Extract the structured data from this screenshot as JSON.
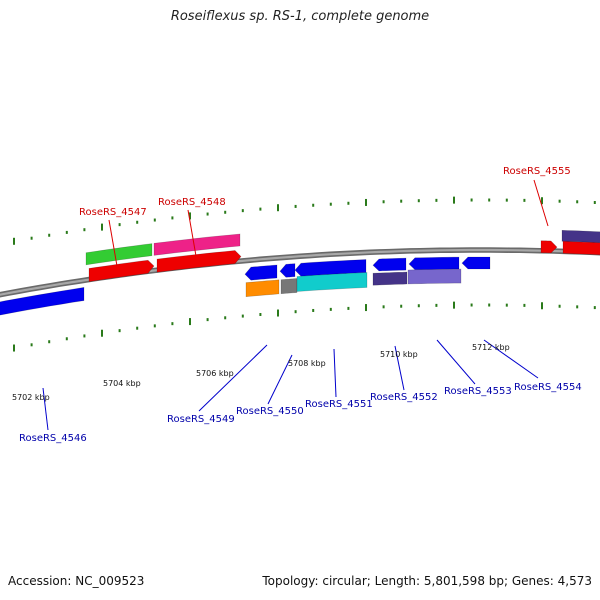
{
  "title": "Roseiflexus sp. RS-1, complete genome",
  "footer": {
    "accession": "Accession: NC_009523",
    "topology": "Topology: circular; Length: 5,801,598 bp; Genes: 4,573"
  },
  "colors": {
    "backbone": "#8c8c8c",
    "ticks": "#2a7a1a",
    "label_forward": "#cc0000",
    "label_reverse": "#0000aa",
    "callout_forward": "#dd0000",
    "callout_reverse": "#0000cc",
    "gene_red": "#ee0000",
    "gene_green": "#33cc33",
    "gene_magenta": "#ee2288",
    "gene_blue": "#0000ee",
    "gene_orange": "#ff8c00",
    "gene_gray": "#777777",
    "gene_cyan": "#11cccc",
    "gene_slate": "#7766cc",
    "gene_darkslate": "#443388"
  },
  "ruler": {
    "kbp_labels": [
      "5702 kbp",
      "5704 kbp",
      "5706 kbp",
      "5708 kbp",
      "5710 kbp",
      "5712 kbp"
    ]
  },
  "genes": {
    "labeled": [
      {
        "name": "RoseRS_4546",
        "strand": "reverse"
      },
      {
        "name": "RoseRS_4547",
        "strand": "forward"
      },
      {
        "name": "RoseRS_4548",
        "strand": "forward"
      },
      {
        "name": "RoseRS_4549",
        "strand": "reverse"
      },
      {
        "name": "RoseRS_4550",
        "strand": "reverse"
      },
      {
        "name": "RoseRS_4551",
        "strand": "reverse"
      },
      {
        "name": "RoseRS_4552",
        "strand": "reverse"
      },
      {
        "name": "RoseRS_4553",
        "strand": "reverse"
      },
      {
        "name": "RoseRS_4554",
        "strand": "reverse"
      },
      {
        "name": "RoseRS_4555",
        "strand": "forward"
      }
    ]
  }
}
